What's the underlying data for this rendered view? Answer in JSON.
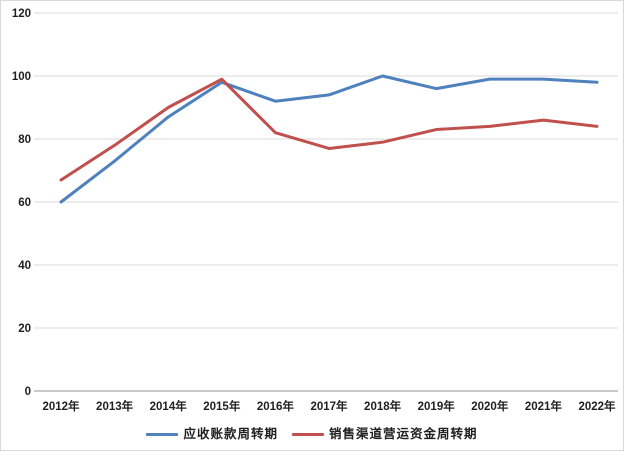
{
  "chart_data": {
    "type": "line",
    "title": "",
    "xlabel": "",
    "ylabel": "",
    "categories": [
      "2012年",
      "2013年",
      "2014年",
      "2015年",
      "2016年",
      "2017年",
      "2018年",
      "2019年",
      "2020年",
      "2021年",
      "2022年"
    ],
    "series": [
      {
        "name": "应收账款周转期",
        "color": "#4F81BD",
        "values": [
          60,
          73,
          87,
          98,
          92,
          94,
          100,
          96,
          99,
          99,
          98
        ]
      },
      {
        "name": "销售渠道营运资金周转期",
        "color": "#C0504D",
        "values": [
          67,
          78,
          90,
          99,
          82,
          77,
          79,
          83,
          84,
          86,
          84
        ]
      }
    ],
    "ylim": [
      0,
      120
    ],
    "y_ticks": [
      0,
      20,
      40,
      60,
      80,
      100,
      120
    ],
    "grid": "horizontal",
    "legend_position": "bottom"
  },
  "colors": {
    "background": "#FFFFFF",
    "gridline": "#D9D9D9",
    "axis_line": "#A6A6A6",
    "tick_label": "#1F1F1F",
    "frame_border": "#D9D9D9"
  }
}
